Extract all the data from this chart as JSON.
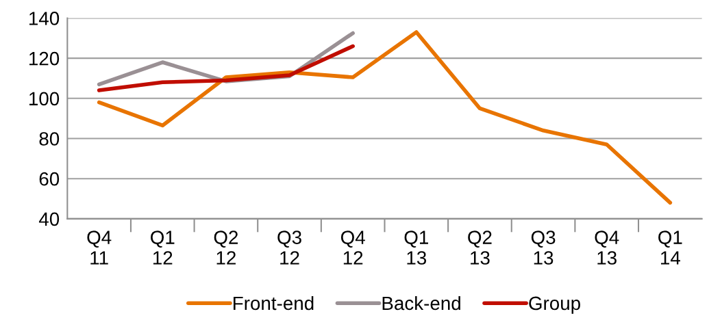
{
  "chart_data": {
    "type": "line",
    "categories": [
      "Q4\n11",
      "Q1\n12",
      "Q2\n12",
      "Q3\n12",
      "Q4\n12",
      "Q1\n13",
      "Q2\n13",
      "Q3\n13",
      "Q4\n13",
      "Q1\n14"
    ],
    "series": [
      {
        "name": "Front-end",
        "color": "#e87400",
        "values": [
          98,
          86.5,
          110.5,
          113,
          110.5,
          133,
          95,
          84,
          77,
          48
        ]
      },
      {
        "name": "Back-end",
        "color": "#9a9094",
        "values": [
          107,
          118,
          108.5,
          111,
          132.5,
          null,
          null,
          null,
          null,
          null
        ]
      },
      {
        "name": "Group",
        "color": "#c00d00",
        "values": [
          104,
          108,
          109,
          111.5,
          126,
          null,
          null,
          null,
          null,
          null
        ]
      }
    ],
    "ylim": [
      40,
      140
    ],
    "yticks": [
      40,
      60,
      80,
      100,
      120,
      140
    ],
    "grid": "y",
    "legend": "bottom",
    "marker": "none",
    "line_style": "solid"
  }
}
